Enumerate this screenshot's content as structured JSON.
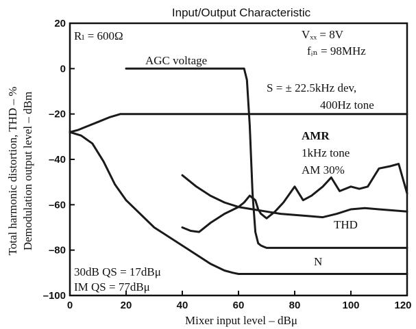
{
  "chart_data": {
    "type": "line",
    "title": "Input/Output Characteristic",
    "xlabel": "Mixer input level  –  dBμ",
    "ylabel_line1": "Total harmonic distortion, THD  –  %",
    "ylabel_line2": "Demodulation output level  –  dBm",
    "xlim": [
      0,
      120
    ],
    "ylim": [
      -100,
      20
    ],
    "x_ticks": [
      0,
      20,
      40,
      60,
      80,
      100,
      120
    ],
    "y_ticks": [
      20,
      0,
      -20,
      -40,
      -60,
      -80,
      -100
    ],
    "grid": false,
    "annotations": {
      "rl": "Rₗ = 600Ω",
      "vcc": "Vₓₓ = 8V",
      "fin": "fᵢₙ = 98MHz",
      "s_line1": "S = ± 22.5kHz dev,",
      "s_line2": "400Hz tone",
      "amr_title": "AMR",
      "amr_line1": "1kHz tone",
      "amr_line2": "AM 30%",
      "agc": "AGC voltage",
      "thd": "THD",
      "n": "N",
      "qs_line1": "30dB QS = 17dBμ",
      "qs_line2": "IM QS = 77dBμ"
    },
    "series": [
      {
        "name": "AGC voltage",
        "x": [
          20,
          30,
          40,
          50,
          60,
          62,
          63,
          64,
          65,
          66,
          67,
          68,
          69,
          70,
          80,
          100,
          120
        ],
        "y": [
          0,
          0,
          0,
          0,
          0,
          0,
          -5,
          -25,
          -55,
          -72,
          -77,
          -78,
          -78.5,
          -79,
          -79,
          -79,
          -79
        ]
      },
      {
        "name": "S",
        "x": [
          0,
          3,
          6,
          10,
          14,
          18,
          25,
          40,
          60,
          80,
          100,
          120
        ],
        "y": [
          -28,
          -27,
          -25.5,
          -23.5,
          -21.5,
          -20,
          -20,
          -20,
          -20,
          -20,
          -20,
          -20
        ]
      },
      {
        "name": "N",
        "x": [
          0,
          4,
          8,
          12,
          16,
          20,
          30,
          40,
          50,
          55,
          58,
          60,
          80,
          100,
          120
        ],
        "y": [
          -28,
          -29.5,
          -33,
          -41,
          -51,
          -58,
          -70,
          -78,
          -86,
          -89,
          -90,
          -90.5,
          -90.5,
          -90.5,
          -90.5
        ]
      },
      {
        "name": "THD",
        "x": [
          40,
          45,
          50,
          55,
          60,
          65,
          70,
          75,
          80,
          85,
          90,
          95,
          100,
          105,
          110,
          115,
          120
        ],
        "y": [
          -47,
          -52,
          -56,
          -59,
          -61,
          -62,
          -63,
          -64,
          -64.5,
          -65,
          -65.5,
          -64,
          -62,
          -61.5,
          -62,
          -62.5,
          -63
        ]
      },
      {
        "name": "AMR",
        "x": [
          40,
          43,
          46,
          50,
          55,
          60,
          62,
          64,
          66,
          67,
          68,
          70,
          73,
          76,
          80,
          83,
          86,
          90,
          93,
          96,
          100,
          103,
          106,
          110,
          114,
          117,
          120
        ],
        "y": [
          -70,
          -71.5,
          -72,
          -68,
          -64,
          -61,
          -59,
          -56,
          -58,
          -62,
          -64,
          -66,
          -63,
          -59,
          -52,
          -58,
          -56,
          -52,
          -48,
          -54,
          -52,
          -53,
          -52,
          -44,
          -43,
          -42,
          -55
        ]
      }
    ]
  }
}
